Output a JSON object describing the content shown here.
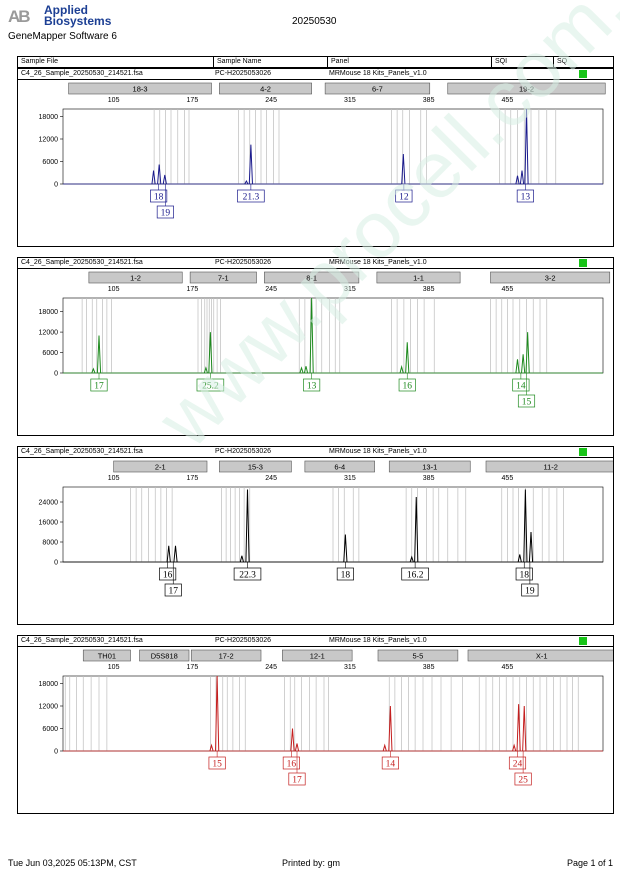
{
  "header": {
    "logo_mark": "AB",
    "brand_line1": "Applied",
    "brand_line2": "Biosystems",
    "software": "GeneMapper Software 6",
    "date": "20250530"
  },
  "columns": [
    "Sample File",
    "Sample Name",
    "Panel",
    "SQI",
    "SQ"
  ],
  "sample": {
    "file": "C4_26_Sample_20250530_214521.fsa",
    "name": "PC-H2025053026",
    "panel": "MRMouse 18 Kits_Panels_v1.0"
  },
  "watermark": "www.procell.com.cn",
  "footer": {
    "timestamp": "Tue Jun 03,2025 05:13PM, CST",
    "printed_by": "Printed by: gm",
    "page": "Page 1 of 1"
  },
  "chart_data": [
    {
      "type": "line",
      "color": "#1a1a8c",
      "x_ticks": [
        105,
        175,
        245,
        315,
        385,
        455
      ],
      "xlim": [
        60,
        540
      ],
      "ylim": [
        0,
        20000
      ],
      "y_ticks": [
        0,
        6000,
        12000,
        18000
      ],
      "markers": [
        {
          "label": "18-3",
          "start": 65,
          "end": 192
        },
        {
          "label": "4-2",
          "start": 199,
          "end": 281
        },
        {
          "label": "6-7",
          "start": 293,
          "end": 386
        },
        {
          "label": "19-2",
          "start": 402,
          "end": 542
        }
      ],
      "bins": [
        141,
        146,
        151,
        156,
        162,
        168,
        172,
        216,
        221,
        226,
        231,
        236,
        241,
        247,
        252,
        352,
        357,
        362,
        368,
        378,
        383,
        448,
        453,
        458,
        464,
        470,
        476,
        483,
        490,
        498
      ],
      "peaks": [
        {
          "x": 140.5,
          "h": 3600
        },
        {
          "x": 145.5,
          "h": 5200
        },
        {
          "x": 150.5,
          "h": 2400
        },
        {
          "x": 223,
          "h": 800
        },
        {
          "x": 227,
          "h": 10500
        },
        {
          "x": 362.5,
          "h": 8000
        },
        {
          "x": 464,
          "h": 2200
        },
        {
          "x": 468,
          "h": 3600
        },
        {
          "x": 472,
          "h": 20000
        }
      ],
      "alleles": [
        {
          "label": "18",
          "x": 145,
          "row": 0
        },
        {
          "label": "19",
          "x": 151,
          "row": 1
        },
        {
          "label": "21.3",
          "x": 227,
          "row": 0
        },
        {
          "label": "12",
          "x": 363,
          "row": 0
        },
        {
          "label": "13",
          "x": 471,
          "row": 0
        }
      ]
    },
    {
      "type": "line",
      "color": "#1e8a1e",
      "x_ticks": [
        105,
        175,
        245,
        315,
        385,
        455
      ],
      "xlim": [
        60,
        540
      ],
      "ylim": [
        0,
        22000
      ],
      "y_ticks": [
        0,
        6000,
        12000,
        18000
      ],
      "markers": [
        {
          "label": "1-2",
          "start": 83,
          "end": 166
        },
        {
          "label": "7-1",
          "start": 173,
          "end": 232
        },
        {
          "label": "8-1",
          "start": 239,
          "end": 323
        },
        {
          "label": "1-1",
          "start": 339,
          "end": 413
        },
        {
          "label": "3-2",
          "start": 440,
          "end": 546
        }
      ],
      "bins": [
        77,
        81,
        86,
        90,
        95,
        99,
        103,
        180,
        183,
        186,
        188,
        190,
        192,
        194,
        197,
        200,
        270,
        275,
        280,
        285,
        290,
        297,
        302,
        306,
        352,
        357,
        363,
        369,
        375,
        381,
        390,
        440,
        445,
        450,
        455,
        460,
        466,
        472,
        478,
        484,
        490
      ],
      "peaks": [
        {
          "x": 87,
          "h": 1200
        },
        {
          "x": 92,
          "h": 11000
        },
        {
          "x": 187,
          "h": 1500
        },
        {
          "x": 191,
          "h": 12000
        },
        {
          "x": 272,
          "h": 1500
        },
        {
          "x": 276,
          "h": 2000
        },
        {
          "x": 281,
          "h": 22000
        },
        {
          "x": 361,
          "h": 1800
        },
        {
          "x": 366,
          "h": 9000
        },
        {
          "x": 464,
          "h": 4000
        },
        {
          "x": 469,
          "h": 5500
        },
        {
          "x": 473,
          "h": 12000
        }
      ],
      "alleles": [
        {
          "label": "17",
          "x": 92,
          "row": 0
        },
        {
          "label": "25.2",
          "x": 191,
          "row": 0
        },
        {
          "label": "13",
          "x": 281,
          "row": 0
        },
        {
          "label": "16",
          "x": 366,
          "row": 0
        },
        {
          "label": "14",
          "x": 467,
          "row": 0
        },
        {
          "label": "15",
          "x": 472,
          "row": 1
        }
      ]
    },
    {
      "type": "line",
      "color": "#000000",
      "x_ticks": [
        105,
        175,
        245,
        315,
        385,
        455
      ],
      "xlim": [
        60,
        540
      ],
      "ylim": [
        0,
        30000
      ],
      "y_ticks": [
        0,
        8000,
        16000,
        24000
      ],
      "markers": [
        {
          "label": "2-1",
          "start": 105,
          "end": 188
        },
        {
          "label": "15-3",
          "start": 199,
          "end": 263
        },
        {
          "label": "6-4",
          "start": 275,
          "end": 337
        },
        {
          "label": "13-1",
          "start": 350,
          "end": 422
        },
        {
          "label": "11-2",
          "start": 436,
          "end": 551
        }
      ],
      "bins": [
        120,
        125,
        130,
        136,
        142,
        147,
        152,
        157,
        201,
        205,
        209,
        213,
        217,
        221,
        226,
        300,
        305,
        310,
        318,
        323,
        365,
        370,
        375,
        383,
        389,
        394,
        402,
        411,
        418,
        450,
        455,
        460,
        465,
        471,
        478,
        486,
        492,
        499,
        505
      ],
      "peaks": [
        {
          "x": 154,
          "h": 6500
        },
        {
          "x": 160,
          "h": 6500
        },
        {
          "x": 219,
          "h": 2500
        },
        {
          "x": 224,
          "h": 29000
        },
        {
          "x": 311,
          "h": 11000
        },
        {
          "x": 370,
          "h": 2000
        },
        {
          "x": 374,
          "h": 26000
        },
        {
          "x": 466,
          "h": 3000
        },
        {
          "x": 471,
          "h": 29000
        },
        {
          "x": 476,
          "h": 12000
        }
      ],
      "alleles": [
        {
          "label": "16",
          "x": 153,
          "row": 0
        },
        {
          "label": "17",
          "x": 158,
          "row": 1
        },
        {
          "label": "22.3",
          "x": 224,
          "row": 0
        },
        {
          "label": "18",
          "x": 311,
          "row": 0
        },
        {
          "label": "16.2",
          "x": 373,
          "row": 0
        },
        {
          "label": "18",
          "x": 470,
          "row": 0
        },
        {
          "label": "19",
          "x": 475,
          "row": 1
        }
      ]
    },
    {
      "type": "line",
      "color": "#c41e1e",
      "x_ticks": [
        105,
        175,
        245,
        315,
        385,
        455
      ],
      "xlim": [
        60,
        540
      ],
      "ylim": [
        0,
        20000
      ],
      "y_ticks": [
        0,
        6000,
        12000,
        18000
      ],
      "markers": [
        {
          "label": "TH01",
          "start": 78,
          "end": 120
        },
        {
          "label": "D5S818",
          "start": 128,
          "end": 172
        },
        {
          "label": "17-2",
          "start": 174,
          "end": 236
        },
        {
          "label": "12-1",
          "start": 255,
          "end": 317
        },
        {
          "label": "5-5",
          "start": 340,
          "end": 411
        },
        {
          "label": "X-1",
          "start": 420,
          "end": 551
        }
      ],
      "bins": [
        62,
        66,
        72,
        78,
        85,
        92,
        99,
        191,
        196,
        202,
        206,
        211,
        217,
        222,
        257,
        262,
        266,
        272,
        279,
        285,
        292,
        296,
        350,
        355,
        361,
        367,
        373,
        380,
        388,
        396,
        405,
        415,
        430,
        436,
        442,
        448,
        454,
        460,
        466,
        472,
        478,
        484,
        490,
        496,
        502,
        508,
        513,
        518
      ],
      "peaks": [
        {
          "x": 192,
          "h": 1500
        },
        {
          "x": 197,
          "h": 20000
        },
        {
          "x": 264,
          "h": 6000
        },
        {
          "x": 268,
          "h": 2000
        },
        {
          "x": 346,
          "h": 1500
        },
        {
          "x": 351,
          "h": 12000
        },
        {
          "x": 461,
          "h": 1500
        },
        {
          "x": 465,
          "h": 12500
        },
        {
          "x": 470,
          "h": 12000
        }
      ],
      "alleles": [
        {
          "label": "15",
          "x": 197,
          "row": 0
        },
        {
          "label": "16",
          "x": 263,
          "row": 0
        },
        {
          "label": "17",
          "x": 268,
          "row": 1
        },
        {
          "label": "14",
          "x": 351,
          "row": 0
        },
        {
          "label": "24",
          "x": 464,
          "row": 0
        },
        {
          "label": "25",
          "x": 469,
          "row": 1
        }
      ]
    }
  ]
}
